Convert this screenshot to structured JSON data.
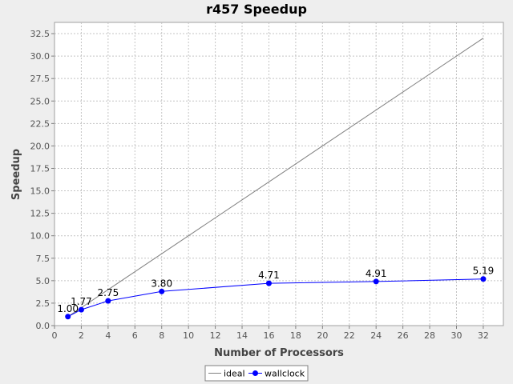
{
  "chart_data": {
    "type": "line",
    "title": "r457 Speedup",
    "xlabel": "Number of Processors",
    "ylabel": "Speedup",
    "xlim": [
      0,
      33.5
    ],
    "ylim": [
      0,
      33.75
    ],
    "xticks": [
      0,
      2,
      4,
      6,
      8,
      10,
      12,
      14,
      16,
      18,
      20,
      22,
      24,
      26,
      28,
      30,
      32
    ],
    "yticks": [
      0.0,
      2.5,
      5.0,
      7.5,
      10.0,
      12.5,
      15.0,
      17.5,
      20.0,
      22.5,
      25.0,
      27.5,
      30.0,
      32.5
    ],
    "grid": true,
    "legend_position": "bottom",
    "series": [
      {
        "name": "ideal",
        "color": "#808080",
        "markers": false,
        "x": [
          1,
          32
        ],
        "y": [
          1,
          32
        ],
        "labels": []
      },
      {
        "name": "wallclock",
        "color": "#0000ff",
        "markers": true,
        "x": [
          1,
          2,
          4,
          8,
          16,
          24,
          32
        ],
        "y": [
          1.0,
          1.77,
          2.75,
          3.8,
          4.71,
          4.91,
          5.19
        ],
        "labels": [
          "1.00",
          "1.77",
          "2.75",
          "3.80",
          "4.71",
          "4.91",
          "5.19"
        ]
      }
    ]
  }
}
